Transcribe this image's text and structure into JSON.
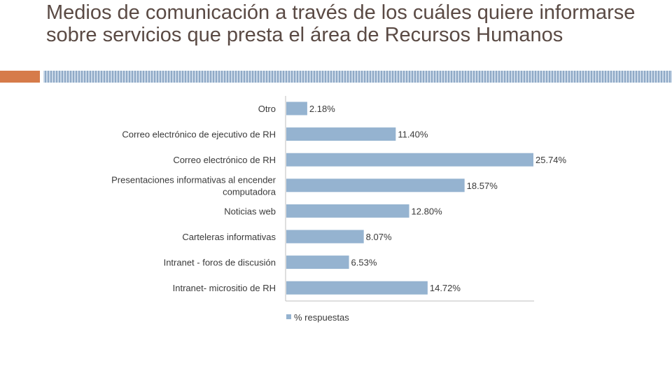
{
  "page": {
    "title": "Medios de comunicación a través de los cuáles quiere informarse sobre servicios que presta el área de Recursos Humanos"
  },
  "colors": {
    "bar": "#95b3d0",
    "accent_orange": "#d67b4a",
    "accent_blue": "#a9bfd6",
    "axis": "#bfbfbf",
    "text": "#3a3a3a"
  },
  "chart_data": {
    "type": "bar",
    "orientation": "horizontal",
    "categories": [
      "Otro",
      "Correo electrónico de ejecutivo de RH",
      "Correo electrónico de RH",
      "Presentaciones informativas al encender computadora",
      "Noticias web",
      "Carteleras informativas",
      "Intranet - foros de discusión",
      "Intranet- micrositio de RH"
    ],
    "series": [
      {
        "name": "% respuestas",
        "values": [
          2.18,
          11.4,
          25.74,
          18.57,
          12.8,
          8.07,
          6.53,
          14.72
        ],
        "labels": [
          "2.18%",
          "11.40%",
          "25.74%",
          "18.57%",
          "12.80%",
          "8.07%",
          "6.53%",
          "14.72%"
        ]
      }
    ],
    "xlim": [
      0,
      25.74
    ],
    "grid": false,
    "legend_position": "bottom"
  }
}
